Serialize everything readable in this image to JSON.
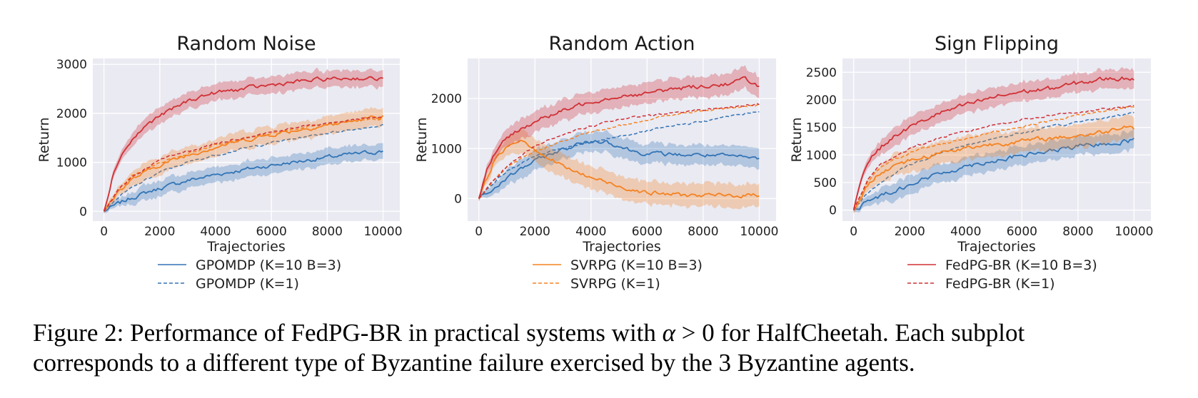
{
  "caption": {
    "part1": "Figure 2: Performance of FedPG-BR in practical systems with ",
    "alpha": "α",
    "part2": " > 0 for HalfCheetah. Each subplot",
    "line2": "corresponds to a different type of Byzantine failure exercised by the 3 Byzantine agents."
  },
  "colors": {
    "blue": "#3274b5",
    "orange": "#f58220",
    "red": "#d03035",
    "bg": "#eaeaf2",
    "grid": "#ffffff"
  },
  "chart_data": [
    {
      "type": "line",
      "title": "Random Noise",
      "xlabel": "Trajectories",
      "ylabel": "Return",
      "xlim": [
        -400,
        10600
      ],
      "ylim": [
        -200,
        3120
      ],
      "xticks": [
        0,
        2000,
        4000,
        6000,
        8000,
        10000
      ],
      "yticks": [
        0,
        1000,
        2000,
        3000
      ],
      "xticklabels": [
        "0",
        "2000",
        "4000",
        "6000",
        "8000",
        "10000"
      ],
      "yticklabels": [
        "0",
        "1000",
        "2000",
        "3000"
      ],
      "legend": [
        {
          "label": "GPOMDP (K=10 B=3)",
          "color": "blue",
          "dashed": false
        },
        {
          "label": "GPOMDP (K=1)",
          "color": "blue",
          "dashed": true
        }
      ],
      "series": [
        {
          "name": "GPOMDP (K=10 B=3)",
          "color": "blue",
          "dashed": false,
          "x": [
            0,
            500,
            1000,
            1500,
            2000,
            3000,
            4000,
            5000,
            6000,
            7000,
            8000,
            9000,
            10000
          ],
          "y": [
            0,
            150,
            280,
            380,
            470,
            630,
            750,
            850,
            940,
            1020,
            1100,
            1170,
            1230
          ],
          "band": 160
        },
        {
          "name": "GPOMDP (K=1)",
          "color": "blue",
          "dashed": true,
          "x": [
            0,
            500,
            1000,
            2000,
            3000,
            4000,
            5000,
            6000,
            7000,
            8000,
            9000,
            10000
          ],
          "y": [
            0,
            280,
            480,
            800,
            1000,
            1150,
            1280,
            1400,
            1500,
            1600,
            1680,
            1760
          ]
        },
        {
          "name": "SVRPG (K=10 B=3)",
          "color": "orange",
          "dashed": false,
          "x": [
            0,
            500,
            1000,
            2000,
            3000,
            4000,
            5000,
            6000,
            7000,
            8000,
            9000,
            10000
          ],
          "y": [
            0,
            400,
            650,
            950,
            1150,
            1320,
            1450,
            1570,
            1670,
            1760,
            1850,
            1950
          ],
          "band": 180
        },
        {
          "name": "SVRPG (K=1)",
          "color": "orange",
          "dashed": true,
          "x": [
            0,
            500,
            1000,
            2000,
            3000,
            4000,
            5000,
            6000,
            7000,
            8000,
            9000,
            10000
          ],
          "y": [
            0,
            430,
            720,
            1000,
            1180,
            1350,
            1480,
            1600,
            1700,
            1780,
            1850,
            1900
          ]
        },
        {
          "name": "FedPG-BR (K=10 B=3)",
          "color": "red",
          "dashed": false,
          "x": [
            0,
            300,
            600,
            1000,
            1500,
            2000,
            2500,
            3000,
            3500,
            4000,
            5000,
            6000,
            7000,
            8000,
            9000,
            10000
          ],
          "y": [
            0,
            700,
            1150,
            1450,
            1750,
            1950,
            2100,
            2250,
            2350,
            2420,
            2500,
            2580,
            2650,
            2700,
            2720,
            2700
          ],
          "band": 170
        },
        {
          "name": "FedPG-BR (K=1)",
          "color": "red",
          "dashed": true,
          "x": [
            0,
            500,
            1000,
            2000,
            3000,
            4000,
            5000,
            6000,
            7000,
            8000,
            9000,
            10000
          ],
          "y": [
            0,
            420,
            700,
            1050,
            1230,
            1380,
            1510,
            1620,
            1720,
            1800,
            1870,
            1930
          ]
        }
      ]
    },
    {
      "type": "line",
      "title": "Random Action",
      "xlabel": "Trajectories",
      "ylabel": "Return",
      "xlim": [
        -400,
        10600
      ],
      "ylim": [
        -450,
        2800
      ],
      "xticks": [
        0,
        2000,
        4000,
        6000,
        8000,
        10000
      ],
      "yticks": [
        0,
        1000,
        2000
      ],
      "xticklabels": [
        "0",
        "2000",
        "4000",
        "6000",
        "8000",
        "10000"
      ],
      "yticklabels": [
        "0",
        "1000",
        "2000"
      ],
      "legend": [
        {
          "label": "SVRPG (K=10 B=3)",
          "color": "orange",
          "dashed": false
        },
        {
          "label": "SVRPG (K=1)",
          "color": "orange",
          "dashed": true
        }
      ],
      "series": [
        {
          "name": "GPOMDP (K=10 B=3)",
          "color": "blue",
          "dashed": false,
          "x": [
            0,
            500,
            1000,
            1500,
            2000,
            2500,
            3000,
            3500,
            4000,
            4500,
            5000,
            5500,
            6000,
            7000,
            8000,
            9000,
            10000
          ],
          "y": [
            0,
            180,
            400,
            600,
            750,
            880,
            980,
            1080,
            1140,
            1160,
            1050,
            950,
            900,
            880,
            870,
            840,
            800
          ],
          "band": 200
        },
        {
          "name": "GPOMDP (K=1)",
          "color": "blue",
          "dashed": true,
          "x": [
            0,
            500,
            1000,
            2000,
            3000,
            4000,
            5000,
            6000,
            7000,
            8000,
            9000,
            10000
          ],
          "y": [
            0,
            300,
            550,
            850,
            1000,
            1120,
            1250,
            1350,
            1450,
            1550,
            1650,
            1750
          ]
        },
        {
          "name": "SVRPG (K=10 B=3)",
          "color": "orange",
          "dashed": false,
          "x": [
            0,
            500,
            1000,
            1500,
            2000,
            2500,
            3000,
            3500,
            4000,
            5000,
            6000,
            7000,
            8000,
            9000,
            10000
          ],
          "y": [
            0,
            700,
            1050,
            1200,
            1000,
            800,
            650,
            520,
            420,
            250,
            120,
            80,
            60,
            60,
            70
          ],
          "band": 230
        },
        {
          "name": "SVRPG (K=1)",
          "color": "orange",
          "dashed": true,
          "x": [
            0,
            500,
            1000,
            2000,
            3000,
            4000,
            5000,
            6000,
            7000,
            8000,
            9000,
            10000
          ],
          "y": [
            0,
            350,
            620,
            950,
            1150,
            1320,
            1450,
            1580,
            1680,
            1750,
            1820,
            1880
          ]
        },
        {
          "name": "FedPG-BR (K=10 B=3)",
          "color": "red",
          "dashed": false,
          "x": [
            0,
            300,
            600,
            1000,
            1500,
            2000,
            3000,
            4000,
            5000,
            6000,
            7000,
            8000,
            9000,
            9500,
            10000
          ],
          "y": [
            0,
            600,
            950,
            1200,
            1400,
            1550,
            1750,
            1950,
            2050,
            2100,
            2200,
            2250,
            2300,
            2400,
            2250
          ],
          "band": 210
        },
        {
          "name": "FedPG-BR (K=1)",
          "color": "red",
          "dashed": true,
          "x": [
            0,
            500,
            1000,
            2000,
            3000,
            4000,
            5000,
            6000,
            7000,
            8000,
            9000,
            10000
          ],
          "y": [
            0,
            350,
            650,
            1050,
            1300,
            1450,
            1580,
            1650,
            1720,
            1780,
            1830,
            1880
          ]
        }
      ]
    },
    {
      "type": "line",
      "title": "Sign Flipping",
      "xlabel": "Trajectories",
      "ylabel": "Return",
      "xlim": [
        -400,
        10600
      ],
      "ylim": [
        -200,
        2750
      ],
      "xticks": [
        0,
        2000,
        4000,
        6000,
        8000,
        10000
      ],
      "yticks": [
        0,
        500,
        1000,
        1500,
        2000,
        2500
      ],
      "xticklabels": [
        "0",
        "2000",
        "4000",
        "6000",
        "8000",
        "10000"
      ],
      "yticklabels": [
        "0",
        "500",
        "1000",
        "1500",
        "2000",
        "2500"
      ],
      "legend": [
        {
          "label": "FedPG-BR (K=10 B=3)",
          "color": "red",
          "dashed": false
        },
        {
          "label": "FedPG-BR (K=1)",
          "color": "red",
          "dashed": true
        }
      ],
      "series": [
        {
          "name": "GPOMDP (K=10 B=3)",
          "color": "blue",
          "dashed": false,
          "x": [
            0,
            500,
            1000,
            2000,
            3000,
            4000,
            5000,
            6000,
            7000,
            8000,
            9000,
            10000
          ],
          "y": [
            0,
            150,
            270,
            470,
            650,
            800,
            900,
            990,
            1070,
            1150,
            1210,
            1270
          ],
          "band": 170
        },
        {
          "name": "GPOMDP (K=1)",
          "color": "blue",
          "dashed": true,
          "x": [
            0,
            500,
            1000,
            2000,
            3000,
            4000,
            5000,
            6000,
            7000,
            8000,
            9000,
            10000
          ],
          "y": [
            0,
            300,
            520,
            820,
            1020,
            1180,
            1300,
            1400,
            1500,
            1600,
            1680,
            1760
          ]
        },
        {
          "name": "SVRPG (K=10 B=3)",
          "color": "orange",
          "dashed": false,
          "x": [
            0,
            500,
            1000,
            1500,
            2000,
            3000,
            4000,
            5000,
            6000,
            7000,
            8000,
            9000,
            9800,
            10000
          ],
          "y": [
            0,
            450,
            700,
            830,
            900,
            1030,
            1130,
            1200,
            1250,
            1300,
            1350,
            1420,
            1560,
            1480
          ],
          "band": 210
        },
        {
          "name": "SVRPG (K=1)",
          "color": "orange",
          "dashed": true,
          "x": [
            0,
            500,
            1000,
            2000,
            3000,
            4000,
            5000,
            6000,
            7000,
            8000,
            9000,
            10000
          ],
          "y": [
            0,
            500,
            800,
            1050,
            1180,
            1300,
            1420,
            1520,
            1620,
            1720,
            1800,
            1880
          ]
        },
        {
          "name": "FedPG-BR (K=10 B=3)",
          "color": "red",
          "dashed": false,
          "x": [
            0,
            300,
            600,
            1000,
            1500,
            2000,
            3000,
            4000,
            5000,
            6000,
            7000,
            8000,
            9000,
            10000
          ],
          "y": [
            0,
            650,
            950,
            1150,
            1350,
            1500,
            1750,
            1900,
            2050,
            2150,
            2200,
            2300,
            2380,
            2400
          ],
          "band": 170
        },
        {
          "name": "FedPG-BR (K=1)",
          "color": "red",
          "dashed": true,
          "x": [
            0,
            500,
            1000,
            2000,
            3000,
            4000,
            5000,
            6000,
            7000,
            8000,
            9000,
            10000
          ],
          "y": [
            0,
            550,
            850,
            1120,
            1300,
            1420,
            1550,
            1640,
            1720,
            1780,
            1830,
            1880
          ]
        }
      ]
    }
  ]
}
